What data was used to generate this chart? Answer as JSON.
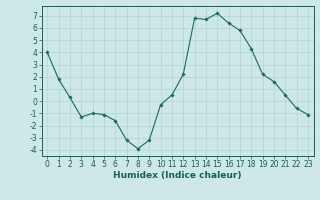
{
  "x": [
    0,
    1,
    2,
    3,
    4,
    5,
    6,
    7,
    8,
    9,
    10,
    11,
    12,
    13,
    14,
    15,
    16,
    17,
    18,
    19,
    20,
    21,
    22,
    23
  ],
  "y": [
    4.0,
    1.8,
    0.3,
    -1.3,
    -1.0,
    -1.1,
    -1.6,
    -3.2,
    -3.9,
    -3.2,
    -0.3,
    0.5,
    2.2,
    6.8,
    6.7,
    7.2,
    6.4,
    5.8,
    4.3,
    2.2,
    1.6,
    0.5,
    -0.6,
    -1.1
  ],
  "xlabel": "Humidex (Indice chaleur)",
  "ylim": [
    -4.5,
    7.8
  ],
  "xlim": [
    -0.5,
    23.5
  ],
  "yticks": [
    -4,
    -3,
    -2,
    -1,
    0,
    1,
    2,
    3,
    4,
    5,
    6,
    7
  ],
  "xticks": [
    0,
    1,
    2,
    3,
    4,
    5,
    6,
    7,
    8,
    9,
    10,
    11,
    12,
    13,
    14,
    15,
    16,
    17,
    18,
    19,
    20,
    21,
    22,
    23
  ],
  "line_color": "#1a6b5a",
  "marker": "D",
  "marker_size": 1.8,
  "bg_color": "#cde8e7",
  "grid_color": "#afd4d2",
  "tick_label_color": "#1a5f50",
  "xlabel_color": "#1a5f50",
  "xlabel_fontsize": 6.5,
  "tick_fontsize": 5.5,
  "linewidth": 0.8
}
